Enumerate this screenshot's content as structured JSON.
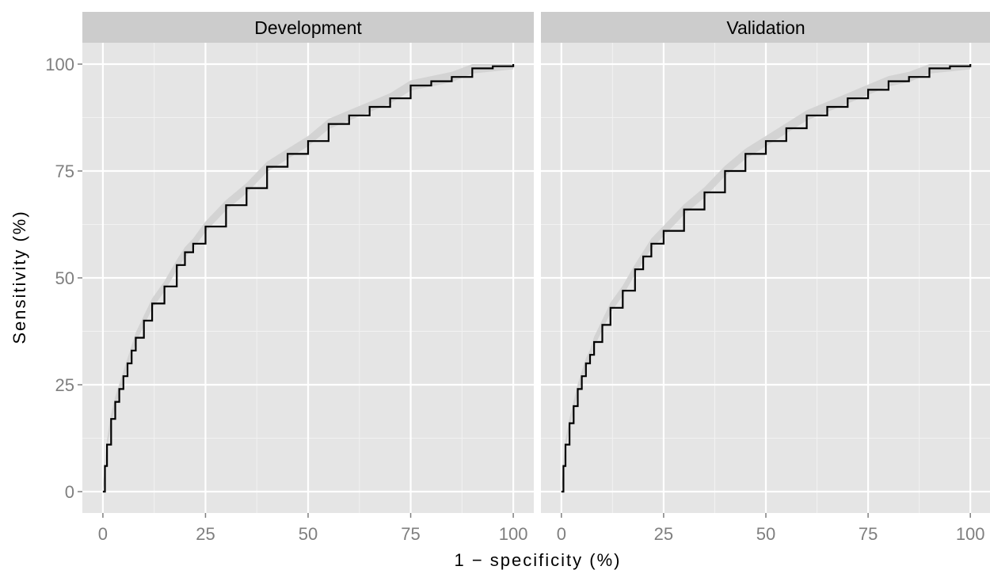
{
  "chart_data": {
    "type": "line",
    "title": "",
    "xlabel": "1 − specificity (%)",
    "ylabel": "Sensitivity (%)",
    "xlim": [
      -5,
      105
    ],
    "ylim": [
      -5,
      105
    ],
    "x_ticks": [
      "0",
      "25",
      "50",
      "75",
      "100"
    ],
    "y_ticks": [
      "0",
      "25",
      "50",
      "75",
      "100"
    ],
    "grid": true,
    "legend": "none",
    "colors": {
      "panel_bg": "#e5e5e5",
      "strip_bg": "#cccccc",
      "grid": "#ffffff",
      "line": "#000000",
      "band": "#d0d0d0",
      "tick_text": "#7f7f7f",
      "text": "#000000"
    },
    "panels": [
      {
        "name": "Development",
        "x": [
          0,
          0.5,
          1,
          2,
          3,
          4,
          5,
          6,
          7,
          8,
          10,
          12,
          15,
          18,
          20,
          22,
          25,
          30,
          35,
          40,
          45,
          50,
          55,
          60,
          65,
          70,
          75,
          80,
          85,
          90,
          95,
          100
        ],
        "y": [
          0,
          6,
          11,
          17,
          21,
          24,
          27,
          30,
          33,
          36,
          40,
          44,
          48,
          53,
          56,
          58,
          62,
          67,
          71,
          76,
          79,
          82,
          86,
          88,
          90,
          92,
          95,
          96,
          97,
          99,
          99.5,
          100
        ]
      },
      {
        "name": "Validation",
        "x": [
          0,
          0.5,
          1,
          2,
          3,
          4,
          5,
          6,
          7,
          8,
          10,
          12,
          15,
          18,
          20,
          22,
          25,
          30,
          35,
          40,
          45,
          50,
          55,
          60,
          65,
          70,
          75,
          80,
          85,
          90,
          95,
          100
        ],
        "y": [
          0,
          6,
          11,
          16,
          20,
          24,
          27,
          30,
          32,
          35,
          39,
          43,
          47,
          52,
          55,
          58,
          61,
          66,
          70,
          75,
          79,
          82,
          85,
          88,
          90,
          92,
          94,
          96,
          97,
          99,
          99.5,
          100
        ]
      }
    ]
  }
}
